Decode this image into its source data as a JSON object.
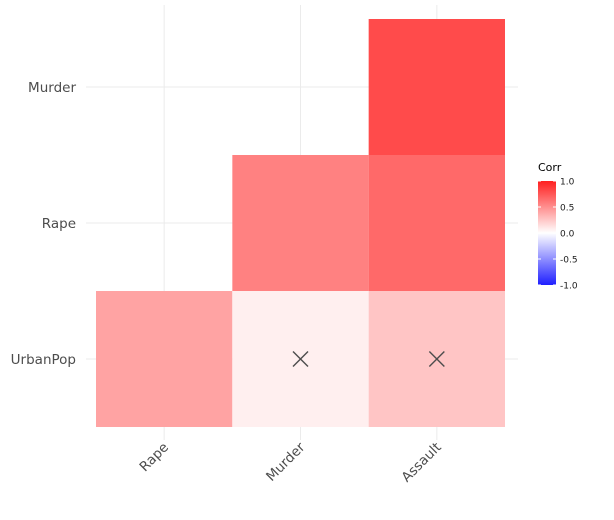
{
  "chart_data": {
    "type": "heatmap",
    "title": "",
    "xlabel": "",
    "ylabel": "",
    "x_categories": [
      "Rape",
      "Murder",
      "Assault"
    ],
    "y_categories": [
      "UrbanPop",
      "Rape",
      "Murder"
    ],
    "cells": [
      {
        "x": "Rape",
        "y": "UrbanPop",
        "value": 0.41,
        "insignificant": false
      },
      {
        "x": "Murder",
        "y": "UrbanPop",
        "value": 0.07,
        "insignificant": true
      },
      {
        "x": "Assault",
        "y": "UrbanPop",
        "value": 0.26,
        "insignificant": true
      },
      {
        "x": "Murder",
        "y": "Rape",
        "value": 0.56,
        "insignificant": false
      },
      {
        "x": "Assault",
        "y": "Rape",
        "value": 0.67,
        "insignificant": false
      },
      {
        "x": "Assault",
        "y": "Murder",
        "value": 0.8,
        "insignificant": false
      }
    ],
    "legend": {
      "title": "Corr",
      "position": "right",
      "ticks": [
        "1.0",
        "0.5",
        "0.0",
        "-0.5",
        "-1.0"
      ],
      "tick_values": [
        1.0,
        0.5,
        0.0,
        -0.5,
        -1.0
      ],
      "range": [
        -1.0,
        1.0
      ]
    },
    "colors": {
      "high": "#FF0000",
      "mid": "#FFFFFF",
      "low": "#0000FF",
      "grid": "#ebebeb",
      "tick_text": "#4d4d4d",
      "cross": "#4d4d4d"
    },
    "insignificant_marker": "x-icon",
    "grid": true,
    "x_tick_rotation_deg": 45
  }
}
